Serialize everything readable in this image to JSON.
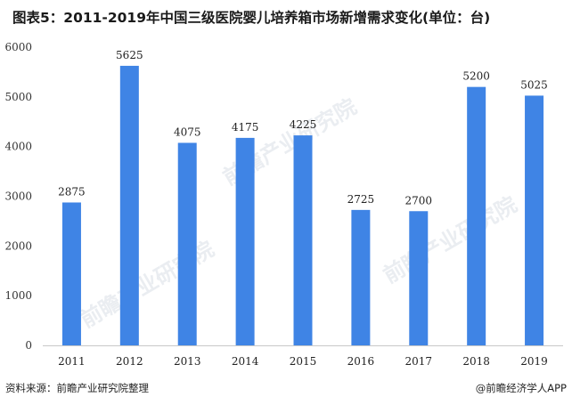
{
  "title": "图表5：2011-2019年中国三级医院婴儿培养箱市场新增需求变化(单位：台)",
  "footer": {
    "source": "资料来源：前瞻产业研究院整理",
    "brand": "@前瞻经济学人APP"
  },
  "watermark_text": "前瞻产业研究院",
  "colors": {
    "bar": "#3f84e5",
    "axis": "#c8c8c8"
  },
  "chart_data": {
    "type": "bar",
    "categories": [
      "2011",
      "2012",
      "2013",
      "2014",
      "2015",
      "2016",
      "2017",
      "2018",
      "2019"
    ],
    "values": [
      2875,
      5625,
      4075,
      4175,
      4225,
      2725,
      2700,
      5200,
      5025
    ],
    "ylim": [
      0,
      6000
    ],
    "yticks": [
      0,
      1000,
      2000,
      3000,
      4000,
      5000,
      6000
    ],
    "grid": false,
    "legend": "none"
  }
}
